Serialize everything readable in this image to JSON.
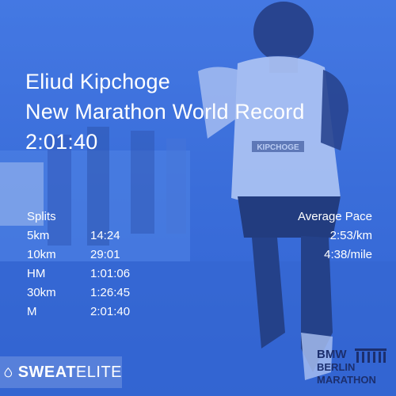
{
  "headline": {
    "name": "Eliud Kipchoge",
    "subtitle": "New Marathon World Record",
    "time": "2:01:40"
  },
  "runner": {
    "bib_text": "KIPCHOGE"
  },
  "splits": {
    "heading": "Splits",
    "rows": [
      {
        "label": "5km",
        "time": "14:24"
      },
      {
        "label": "10km",
        "time": "29:01"
      },
      {
        "label": "HM",
        "time": "1:01:06"
      },
      {
        "label": "30km",
        "time": "1:26:45"
      },
      {
        "label": "M",
        "time": "2:01:40"
      }
    ]
  },
  "pace": {
    "heading": "Average Pace",
    "per_km": "2:53/km",
    "per_mile": "4:38/mile"
  },
  "branding": {
    "left_logo_text": "SWEATELITE",
    "right_logo_lines": [
      "BMW",
      "BERLIN",
      "MARATHON"
    ]
  },
  "colors": {
    "overlay_blue": "#3c6fd9",
    "text": "#ffffff",
    "logo_navy": "#1c2f6e"
  }
}
